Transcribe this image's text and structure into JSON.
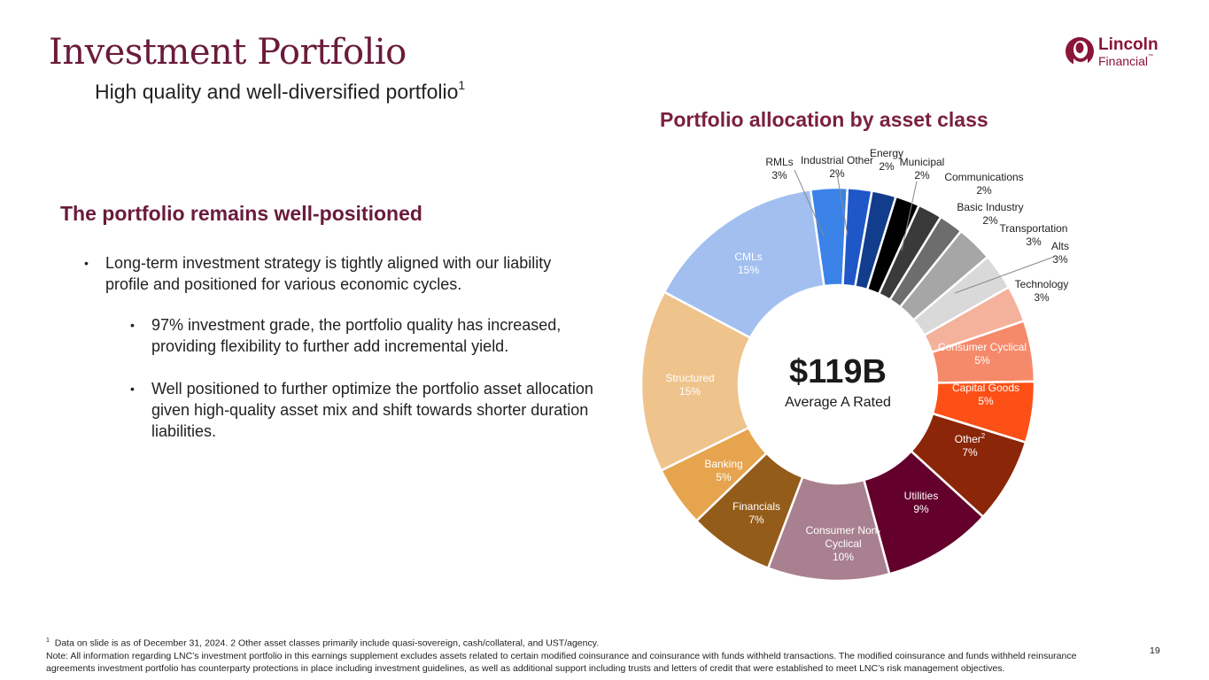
{
  "header": {
    "title": "Investment Portfolio",
    "subtitle": "High quality and well-diversified portfolio",
    "subtitle_sup": "1"
  },
  "logo": {
    "line1": "Lincoln",
    "line2": "Financial",
    "tm": "™",
    "icon": "lincoln-portrait-icon"
  },
  "left": {
    "heading": "The portfolio remains well-positioned",
    "bullets": [
      "Long-term investment strategy is tightly aligned with our liability profile and positioned for various economic cycles.",
      "97% investment grade, the portfolio quality has increased, providing flexibility to further add incremental yield.",
      "Well positioned to further optimize the portfolio asset allocation given high-quality asset mix and shift towards shorter duration liabilities."
    ]
  },
  "chart_data": {
    "type": "pie",
    "donut": true,
    "title": "Portfolio allocation by asset class",
    "center_value": "$119B",
    "center_label": "Average A Rated",
    "unit": "%",
    "slices": [
      {
        "name": "RMLs",
        "value": 3,
        "label": "3%",
        "color": "#3b82e8"
      },
      {
        "name": "Industrial Other",
        "value": 2,
        "label": "2%",
        "color": "#1f57c8"
      },
      {
        "name": "Energy",
        "value": 2,
        "label": "2%",
        "color": "#123d8c"
      },
      {
        "name": "Municipal",
        "value": 2,
        "label": "2%",
        "color": "#000000"
      },
      {
        "name": "Communications",
        "value": 2,
        "label": "2%",
        "color": "#3a3a3a"
      },
      {
        "name": "Basic Industry",
        "value": 2,
        "label": "2%",
        "color": "#6d6d6d"
      },
      {
        "name": "Transportation",
        "value": 3,
        "label": "3%",
        "color": "#a6a6a6"
      },
      {
        "name": "Alts",
        "value": 3,
        "label": "3%",
        "color": "#d9d9d9"
      },
      {
        "name": "Technology",
        "value": 3,
        "label": "3%",
        "color": "#f4b19b"
      },
      {
        "name": "Consumer Cyclical",
        "value": 5,
        "label": "5%",
        "color": "#f58a6a"
      },
      {
        "name": "Capital Goods",
        "value": 5,
        "label": "5%",
        "color": "#fc5016"
      },
      {
        "name": "Other",
        "sup": "2",
        "value": 7,
        "label": "7%",
        "color": "#8b2608"
      },
      {
        "name": "Utilities",
        "value": 9,
        "label": "9%",
        "color": "#63002b"
      },
      {
        "name": "Consumer Non-Cyclical",
        "value": 10,
        "label": "10%",
        "color": "#a98090"
      },
      {
        "name": "Financials",
        "value": 7,
        "label": "7%",
        "color": "#945c1a"
      },
      {
        "name": "Banking",
        "value": 5,
        "label": "5%",
        "color": "#e6a44f"
      },
      {
        "name": "Structured",
        "value": 15,
        "label": "15%",
        "color": "#eec38c"
      },
      {
        "name": "CMLs",
        "value": 15,
        "label": "15%",
        "color": "#a2bff0"
      }
    ]
  },
  "footnote": {
    "line1_marker": "1",
    "line1": "Data on slide is as of December 31, 2024. 2 Other asset classes primarily include quasi-sovereign, cash/collateral, and UST/agency.",
    "note": "Note: All information regarding LNC’s investment portfolio in this earnings supplement excludes assets related to certain modified coinsurance and coinsurance with funds withheld transactions. The modified coinsurance and funds withheld reinsurance agreements investment portfolio has counterparty protections in place including investment guidelines, as well as additional support including trusts and letters of credit that were established to meet LNC’s risk management objectives."
  },
  "page_number": "19"
}
